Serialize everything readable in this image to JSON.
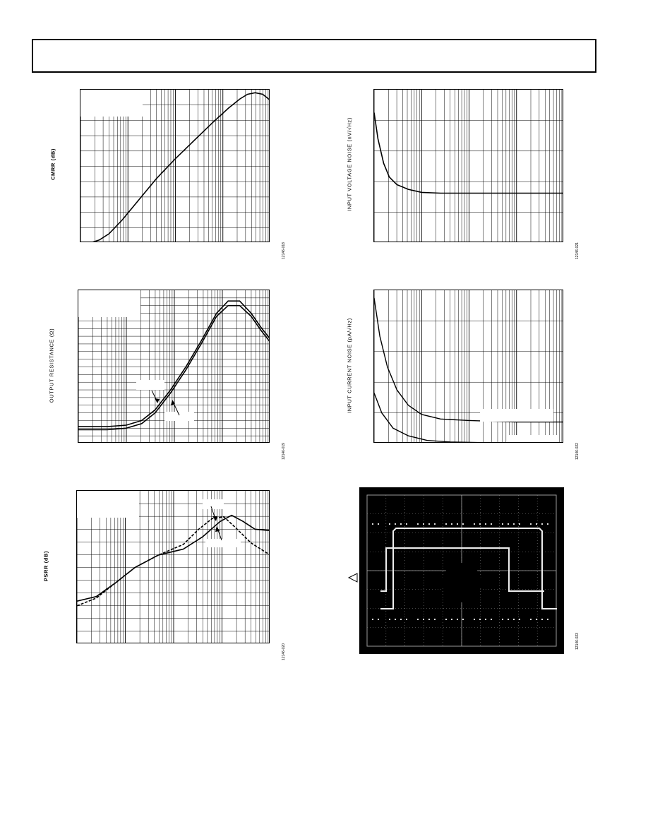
{
  "page": {
    "header": {
      "title": ""
    }
  },
  "charts": [
    {
      "id": "cmrr",
      "ylabel": "CMRR (dB)",
      "figure_id": "12146-018"
    },
    {
      "id": "voltage-noise",
      "ylabel": "INPUT VOLTAGE NOISE (nV/√Hz)",
      "figure_id": "12146-021"
    },
    {
      "id": "output-resistance",
      "ylabel": "OUTPUT RESISTANCE (Ω)",
      "figure_id": "12146-019"
    },
    {
      "id": "current-noise",
      "ylabel": "INPUT CURRENT NOISE (pA/√Hz)",
      "figure_id": "12146-022"
    },
    {
      "id": "psrr",
      "ylabel": "PSRR (dB)",
      "figure_id": "12146-020"
    },
    {
      "id": "scope",
      "ylabel": "",
      "figure_id": "12146-023"
    }
  ],
  "chart_data": [
    {
      "type": "line",
      "title": "",
      "ylabel": "CMRR (dB)",
      "xscale": "log",
      "grid": true,
      "series": [
        {
          "values": [
            [
              0.0,
              1.0
            ],
            [
              0.05,
              1.0
            ],
            [
              0.1,
              0.98
            ],
            [
              0.15,
              0.94
            ],
            [
              0.22,
              0.85
            ],
            [
              0.3,
              0.73
            ],
            [
              0.4,
              0.58
            ],
            [
              0.5,
              0.45
            ],
            [
              0.6,
              0.33
            ],
            [
              0.7,
              0.21
            ],
            [
              0.78,
              0.12
            ],
            [
              0.84,
              0.06
            ],
            [
              0.88,
              0.03
            ],
            [
              0.92,
              0.02
            ],
            [
              0.96,
              0.03
            ],
            [
              1.0,
              0.07
            ]
          ]
        }
      ]
    },
    {
      "type": "line",
      "title": "",
      "ylabel": "INPUT VOLTAGE NOISE (nV/√Hz)",
      "xscale": "log",
      "grid": true,
      "series": [
        {
          "values": [
            [
              0.0,
              0.15
            ],
            [
              0.02,
              0.32
            ],
            [
              0.05,
              0.48
            ],
            [
              0.08,
              0.57
            ],
            [
              0.12,
              0.62
            ],
            [
              0.18,
              0.65
            ],
            [
              0.25,
              0.67
            ],
            [
              0.35,
              0.675
            ],
            [
              0.5,
              0.675
            ],
            [
              0.75,
              0.675
            ],
            [
              1.0,
              0.675
            ]
          ]
        }
      ]
    },
    {
      "type": "line",
      "title": "",
      "ylabel": "OUTPUT RESISTANCE (Ω)",
      "xscale": "log",
      "grid": true,
      "series": [
        {
          "values": [
            [
              0.0,
              0.89
            ],
            [
              0.15,
              0.89
            ],
            [
              0.25,
              0.88
            ],
            [
              0.33,
              0.85
            ],
            [
              0.4,
              0.78
            ],
            [
              0.48,
              0.65
            ],
            [
              0.56,
              0.5
            ],
            [
              0.64,
              0.33
            ],
            [
              0.72,
              0.15
            ],
            [
              0.78,
              0.07
            ],
            [
              0.84,
              0.07
            ],
            [
              0.9,
              0.15
            ],
            [
              0.95,
              0.24
            ],
            [
              1.0,
              0.32
            ]
          ]
        },
        {
          "values": [
            [
              0.0,
              0.91
            ],
            [
              0.15,
              0.91
            ],
            [
              0.25,
              0.9
            ],
            [
              0.33,
              0.87
            ],
            [
              0.4,
              0.8
            ],
            [
              0.48,
              0.67
            ],
            [
              0.56,
              0.52
            ],
            [
              0.64,
              0.35
            ],
            [
              0.72,
              0.17
            ],
            [
              0.78,
              0.1
            ],
            [
              0.84,
              0.1
            ],
            [
              0.9,
              0.17
            ],
            [
              0.95,
              0.26
            ],
            [
              1.0,
              0.34
            ]
          ]
        }
      ]
    },
    {
      "type": "line",
      "title": "",
      "ylabel": "INPUT CURRENT NOISE (pA/√Hz)",
      "xscale": "log",
      "grid": true,
      "series": [
        {
          "values": [
            [
              0.0,
              0.05
            ],
            [
              0.03,
              0.3
            ],
            [
              0.07,
              0.5
            ],
            [
              0.12,
              0.65
            ],
            [
              0.18,
              0.75
            ],
            [
              0.25,
              0.81
            ],
            [
              0.35,
              0.84
            ],
            [
              0.5,
              0.85
            ],
            [
              0.75,
              0.86
            ],
            [
              1.0,
              0.86
            ]
          ]
        },
        {
          "values": [
            [
              0.0,
              0.67
            ],
            [
              0.04,
              0.8
            ],
            [
              0.1,
              0.9
            ],
            [
              0.18,
              0.95
            ],
            [
              0.28,
              0.98
            ],
            [
              0.4,
              0.99
            ],
            [
              0.6,
              0.995
            ],
            [
              1.0,
              0.995
            ]
          ]
        }
      ]
    },
    {
      "type": "line",
      "title": "",
      "ylabel": "PSRR (dB)",
      "xscale": "log",
      "grid": true,
      "series": [
        {
          "values": [
            [
              0.0,
              0.72
            ],
            [
              0.1,
              0.69
            ],
            [
              0.2,
              0.6
            ],
            [
              0.3,
              0.5
            ],
            [
              0.42,
              0.42
            ],
            [
              0.55,
              0.38
            ],
            [
              0.65,
              0.3
            ],
            [
              0.74,
              0.2
            ],
            [
              0.8,
              0.16
            ],
            [
              0.86,
              0.2
            ],
            [
              0.92,
              0.25
            ],
            [
              1.0,
              0.26
            ]
          ]
        },
        {
          "values": [
            [
              0.0,
              0.75
            ],
            [
              0.1,
              0.7
            ],
            [
              0.2,
              0.6
            ],
            [
              0.3,
              0.5
            ],
            [
              0.42,
              0.42
            ],
            [
              0.55,
              0.35
            ],
            [
              0.63,
              0.25
            ],
            [
              0.7,
              0.18
            ],
            [
              0.76,
              0.17
            ],
            [
              0.82,
              0.24
            ],
            [
              0.9,
              0.34
            ],
            [
              1.0,
              0.42
            ]
          ]
        }
      ]
    }
  ]
}
